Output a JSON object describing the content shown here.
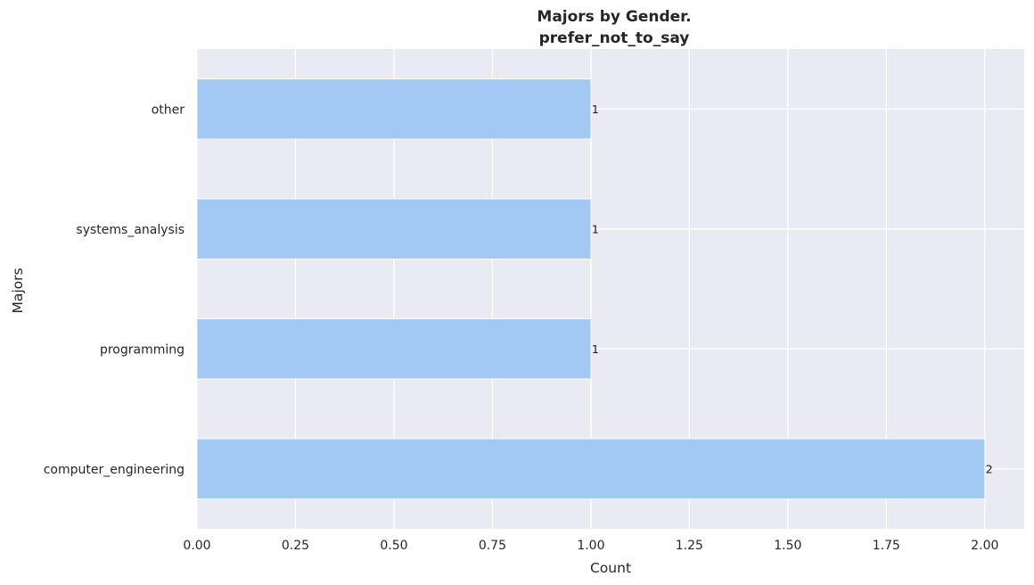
{
  "chart_data": {
    "type": "bar",
    "orientation": "horizontal",
    "title_line1": "Majors by Gender.",
    "title_line2": "prefer_not_to_say",
    "xlabel": "Count",
    "ylabel": "Majors",
    "categories": [
      "other",
      "systems_analysis",
      "programming",
      "computer_engineering"
    ],
    "values": [
      1,
      1,
      1,
      2
    ],
    "data_labels": [
      "1",
      "1",
      "1",
      "2"
    ],
    "xlim": [
      0,
      2.1
    ],
    "xticks": [
      0,
      0.25,
      0.5,
      0.75,
      1.0,
      1.25,
      1.5,
      1.75,
      2.0
    ],
    "xtick_labels": [
      "0.00",
      "0.25",
      "0.50",
      "0.75",
      "1.00",
      "1.25",
      "1.50",
      "1.75",
      "2.00"
    ],
    "grid": true,
    "colors": {
      "bar": "#a1c9f4",
      "background": "#eaeaf2",
      "grid": "#ffffff",
      "text": "#262626"
    }
  }
}
